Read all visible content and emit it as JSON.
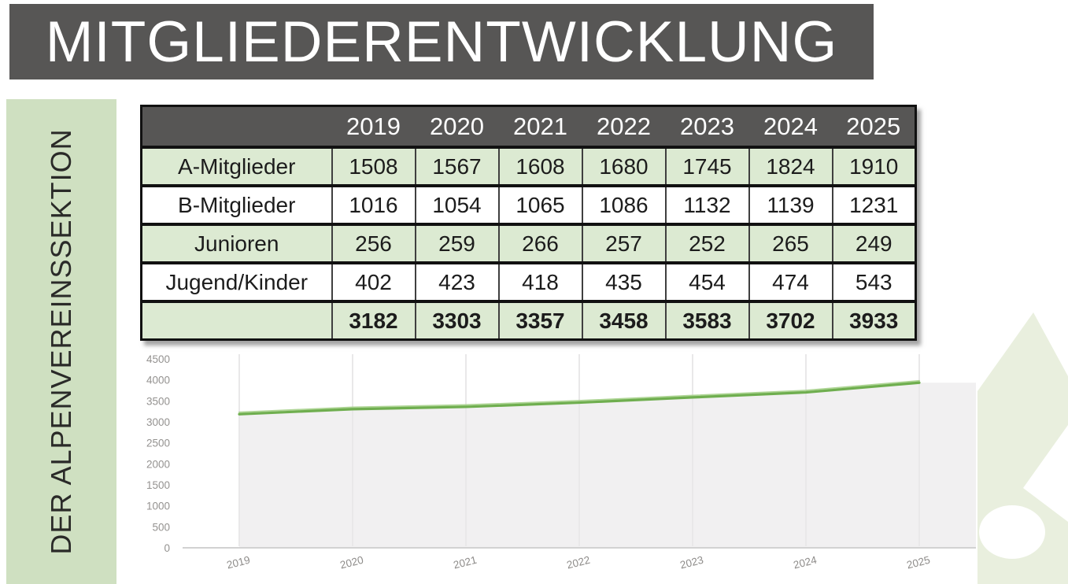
{
  "title": "MITGLIEDERENTWICKLUNG",
  "sidebar": {
    "label": "DER ALPENVEREINSSEKTION"
  },
  "table": {
    "header": [
      "",
      "2019",
      "2020",
      "2021",
      "2022",
      "2023",
      "2024",
      "2025"
    ],
    "rows": [
      {
        "label": "A-Mitglieder",
        "values": [
          "1508",
          "1567",
          "1608",
          "1680",
          "1745",
          "1824",
          "1910"
        ]
      },
      {
        "label": "B-Mitglieder",
        "values": [
          "1016",
          "1054",
          "1065",
          "1086",
          "1132",
          "1139",
          "1231"
        ]
      },
      {
        "label": "Junioren",
        "values": [
          "256",
          "259",
          "266",
          "257",
          "252",
          "265",
          "249"
        ]
      },
      {
        "label": "Jugend/Kinder",
        "values": [
          "402",
          "423",
          "418",
          "435",
          "454",
          "474",
          "543"
        ]
      },
      {
        "label": "",
        "values": [
          "3182",
          "3303",
          "3357",
          "3458",
          "3583",
          "3702",
          "3933"
        ],
        "is_total": true
      }
    ]
  },
  "chart_data": {
    "type": "area",
    "categories": [
      "2019",
      "2020",
      "2021",
      "2022",
      "2023",
      "2024",
      "2025"
    ],
    "values": [
      3182,
      3303,
      3357,
      3458,
      3583,
      3702,
      3933
    ],
    "title": "",
    "xlabel": "",
    "ylabel": "",
    "ylim": [
      0,
      4500
    ],
    "ytick_step": 500,
    "yticks": [
      "4500",
      "4000",
      "3500",
      "3000",
      "2500",
      "2000",
      "1500",
      "1000",
      "500",
      "0"
    ],
    "grid": "vertical-at-categories",
    "legend": "none",
    "line_color": "#6fae4f",
    "line_highlight_color": "#a5d08a",
    "area_fill_color": "#f1f0f1",
    "axis_label_color": "#949290",
    "baseline_color": "#d2d2d2",
    "gridline_color": "#e9e8e9"
  },
  "colors": {
    "title_bar_bg": "#575655",
    "title_text": "#ffffff",
    "table_header_bg": "#575655",
    "table_row_green": "#dcead2",
    "sidebar_green": "#cfe0c1",
    "decor_green": "#e9efde",
    "border_black": "#111111"
  }
}
